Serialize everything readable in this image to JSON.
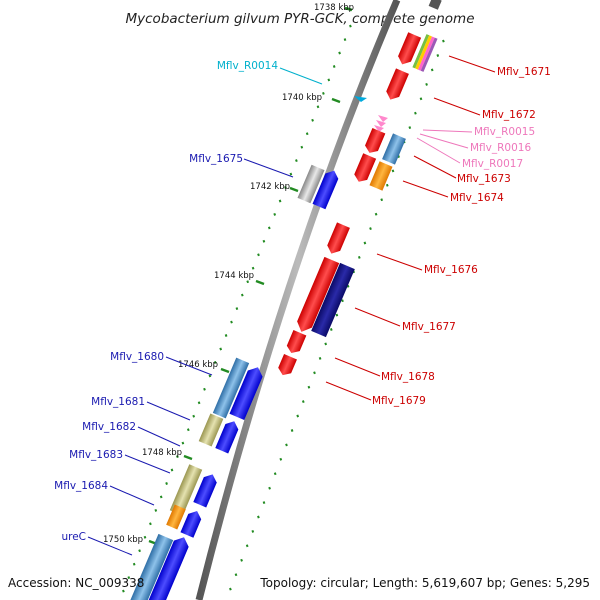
{
  "title": "Mycobacterium gilvum PYR-GCK, complete genome",
  "footer": {
    "accession": "Accession: NC_009338",
    "summary": "Topology: circular; Length: 5,619,607 bp; Genes: 5,295"
  },
  "colors": {
    "forward_cds": "#0000ee",
    "reverse_cds": "#ee0000",
    "forward_label": "#1a1ab0",
    "reverse_label": "#cc0000",
    "rna_label": "#00b0cc",
    "ncrna_label": "#ee77bb",
    "backbone": "#888888",
    "ticks": "#228b22"
  },
  "scale_labels": [
    "1738 kbp",
    "1740 kbp",
    "1742 kbp",
    "1744 kbp",
    "1746 kbp",
    "1748 kbp",
    "1750 kbp"
  ],
  "forward_labels": [
    "Mflv_R0014",
    "Mflv_1675",
    "Mflv_1680",
    "Mflv_1681",
    "Mflv_1682",
    "Mflv_1683",
    "Mflv_1684",
    "ureC"
  ],
  "reverse_labels": [
    "Mflv_1671",
    "Mflv_1672",
    "Mflv_R0015",
    "Mflv_R0016",
    "Mflv_R0017",
    "Mflv_1673",
    "Mflv_1674",
    "Mflv_1676",
    "Mflv_1677",
    "Mflv_1678",
    "Mflv_1679"
  ]
}
